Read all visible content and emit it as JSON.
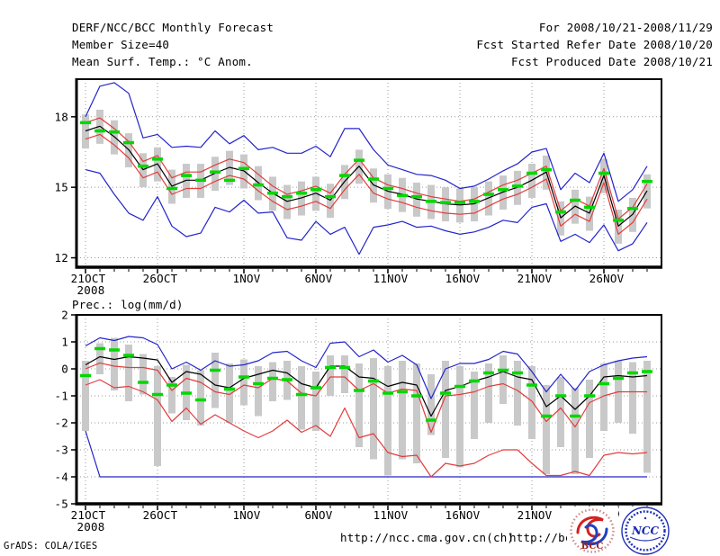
{
  "header": {
    "left_lines": [
      "DERF/NCC/BCC Monthly Forecast",
      "Member Size=40",
      "Mean Surf. Temp.: °C Anom."
    ],
    "right_lines": [
      "For 2008/10/21-2008/11/29",
      "Fcst Started Refer Date 2008/10/20",
      "Fcst Produced Date 2008/10/21"
    ]
  },
  "footer": {
    "grads_credit": "GrADS: COLA/IGES",
    "url_ncc": "http://ncc.cma.gov.cn(ch)",
    "url_bcc": "http://bcc.c",
    "logo_bcc_text": "BCC",
    "logo_ncc_text": "NCC"
  },
  "colors": {
    "ens_minmax_blue": "#2424cc",
    "spread_red": "#e23c3c",
    "mean_black": "#000000",
    "obs_green": "#00d800",
    "bar_gray": "#c9c9c9",
    "grid_gray": "#999999"
  },
  "chart_data": [
    {
      "type": "line",
      "title": "Mean Surf. Temp.: °C Anom.",
      "xlabel": "",
      "ylabel": "",
      "ylim": [
        11.6,
        19.6
      ],
      "yticks": [
        18,
        15,
        12
      ],
      "ygrid": [
        18,
        15,
        12
      ],
      "x_count": 40,
      "xticks": {
        "positions": [
          0,
          5,
          11,
          16,
          21,
          26,
          31,
          36
        ],
        "labels": [
          "21OCT",
          "26OCT",
          "1NOV",
          "6NOV",
          "11NOV",
          "16NOV",
          "21NOV",
          "26NOV"
        ],
        "sublabel": "2008"
      },
      "legend": "none",
      "grid": true,
      "series": [
        {
          "name": "ens-max",
          "color": "#2424cc",
          "values": [
            18.0,
            19.3,
            19.45,
            19.0,
            17.1,
            17.25,
            16.7,
            16.75,
            16.7,
            17.4,
            16.85,
            17.2,
            16.6,
            16.7,
            16.45,
            16.45,
            16.75,
            16.3,
            17.5,
            17.5,
            16.6,
            15.95,
            15.75,
            15.55,
            15.5,
            15.3,
            14.95,
            15.05,
            15.35,
            15.7,
            16.0,
            16.5,
            16.65,
            14.9,
            15.6,
            15.2,
            16.45,
            14.4,
            14.9,
            15.9
          ]
        },
        {
          "name": "ens-min",
          "color": "#2424cc",
          "values": [
            15.75,
            15.6,
            14.7,
            13.9,
            13.6,
            14.6,
            13.35,
            12.9,
            13.05,
            14.15,
            13.95,
            14.45,
            13.9,
            13.95,
            12.85,
            12.75,
            13.55,
            13.0,
            13.3,
            12.15,
            13.3,
            13.4,
            13.55,
            13.3,
            13.35,
            13.15,
            13.0,
            13.1,
            13.3,
            13.6,
            13.5,
            14.15,
            14.3,
            12.7,
            13.0,
            12.65,
            13.4,
            12.3,
            12.6,
            13.5
          ]
        },
        {
          "name": "spread-upper",
          "color": "#e23c3c",
          "values": [
            17.75,
            17.95,
            17.5,
            16.95,
            16.1,
            16.35,
            15.4,
            15.65,
            15.65,
            15.95,
            16.2,
            16.05,
            15.55,
            15.05,
            14.7,
            14.85,
            15.05,
            14.75,
            15.55,
            16.2,
            15.4,
            15.1,
            14.95,
            14.75,
            14.6,
            14.5,
            14.4,
            14.5,
            14.8,
            15.1,
            15.3,
            15.6,
            15.9,
            14.0,
            14.5,
            14.2,
            15.8,
            13.65,
            14.15,
            15.15
          ]
        },
        {
          "name": "spread-lower",
          "color": "#e23c3c",
          "values": [
            17.05,
            17.25,
            16.8,
            16.25,
            15.4,
            15.65,
            14.7,
            14.95,
            14.95,
            15.25,
            15.5,
            15.35,
            14.85,
            14.4,
            14.05,
            14.2,
            14.4,
            14.1,
            14.9,
            15.55,
            14.75,
            14.5,
            14.35,
            14.15,
            14.0,
            13.9,
            13.85,
            13.9,
            14.2,
            14.5,
            14.7,
            15.0,
            15.35,
            13.35,
            13.85,
            13.55,
            15.2,
            13.0,
            13.5,
            14.5
          ]
        },
        {
          "name": "ens-mean",
          "color": "#000000",
          "values": [
            17.4,
            17.6,
            17.15,
            16.6,
            15.75,
            16.0,
            15.05,
            15.3,
            15.3,
            15.6,
            15.85,
            15.7,
            15.2,
            14.75,
            14.4,
            14.55,
            14.75,
            14.45,
            15.25,
            15.9,
            15.1,
            14.83,
            14.7,
            14.5,
            14.4,
            14.3,
            14.25,
            14.3,
            14.55,
            14.8,
            15.0,
            15.3,
            15.65,
            13.7,
            14.2,
            13.9,
            15.5,
            13.35,
            13.85,
            14.85
          ]
        }
      ],
      "obs_markers": {
        "name": "obs-dash",
        "color": "#00d800",
        "values": [
          17.75,
          17.4,
          17.35,
          16.9,
          15.9,
          16.2,
          14.95,
          15.5,
          15.3,
          15.65,
          15.3,
          15.8,
          15.1,
          14.75,
          14.6,
          14.75,
          14.9,
          14.6,
          15.5,
          16.15,
          15.35,
          14.95,
          14.65,
          14.6,
          14.4,
          14.35,
          14.35,
          14.4,
          14.7,
          14.9,
          15.05,
          15.6,
          15.75,
          13.95,
          14.45,
          14.15,
          15.6,
          13.6,
          14.1,
          15.25
        ]
      },
      "spread_bars": {
        "color": "#c9c9c9",
        "low": [
          16.65,
          16.85,
          16.4,
          15.85,
          15.0,
          15.25,
          14.3,
          14.55,
          14.55,
          14.85,
          15.1,
          14.95,
          14.45,
          14.0,
          13.65,
          13.8,
          14.0,
          13.7,
          14.5,
          15.15,
          14.35,
          14.08,
          13.95,
          13.75,
          13.65,
          13.55,
          13.5,
          13.55,
          13.8,
          14.05,
          14.25,
          14.55,
          14.9,
          12.95,
          13.45,
          13.15,
          14.75,
          12.6,
          13.1,
          14.1
        ],
        "high": [
          18.1,
          18.3,
          17.85,
          17.3,
          16.45,
          16.7,
          15.75,
          16.0,
          16.0,
          16.3,
          16.55,
          16.4,
          15.9,
          15.45,
          15.1,
          15.25,
          15.45,
          15.15,
          15.95,
          16.6,
          15.8,
          15.55,
          15.4,
          15.2,
          15.1,
          15.0,
          14.95,
          15.0,
          15.25,
          15.5,
          15.7,
          16.0,
          16.35,
          14.4,
          14.9,
          14.6,
          16.2,
          14.05,
          14.55,
          15.55
        ]
      }
    },
    {
      "type": "line",
      "title": "Prec.: log(mm/d)",
      "xlabel": "",
      "ylabel": "",
      "ylim": [
        -5,
        2
      ],
      "yticks": [
        2,
        1,
        0,
        -1,
        -2,
        -3,
        -4,
        -5
      ],
      "ygrid": [
        1,
        0,
        -1,
        -2,
        -3,
        -4
      ],
      "x_count": 40,
      "xticks": {
        "positions": [
          0,
          5,
          11,
          16,
          21,
          26,
          31,
          36
        ],
        "labels": [
          "21OCT",
          "26OCT",
          "1NOV",
          "6NOV",
          "11NOV",
          "16NOV",
          "21NOV",
          "26NOV"
        ],
        "sublabel": "2008"
      },
      "legend": "none",
      "grid": true,
      "series": [
        {
          "name": "ens-max",
          "color": "#2424cc",
          "values": [
            0.85,
            1.15,
            1.05,
            1.2,
            1.15,
            0.9,
            0.0,
            0.25,
            -0.05,
            0.3,
            0.1,
            0.15,
            0.3,
            0.6,
            0.65,
            0.3,
            0.05,
            0.95,
            1.0,
            0.45,
            0.7,
            0.25,
            0.5,
            0.15,
            -1.1,
            0.0,
            0.2,
            0.2,
            0.35,
            0.65,
            0.55,
            -0.1,
            -0.85,
            -0.2,
            -0.8,
            -0.1,
            0.15,
            0.3,
            0.4,
            0.45
          ]
        },
        {
          "name": "ens-min",
          "color": "#2424cc",
          "values": [
            -2.3,
            -4.0,
            -4.0,
            -4.0,
            -4.0,
            -4.0,
            -4.0,
            -4.0,
            -4.0,
            -4.0,
            -4.0,
            -4.0,
            -4.0,
            -4.0,
            -4.0,
            -4.0,
            -4.0,
            -4.0,
            -4.0,
            -4.0,
            -4.0,
            -4.0,
            -4.0,
            -4.0,
            -4.0,
            -4.0,
            -4.0,
            -4.0,
            -4.0,
            -4.0,
            -4.0,
            -4.0,
            -4.0,
            -4.0,
            -4.0,
            -4.0,
            -4.0,
            -4.0,
            -4.0,
            -4.0
          ]
        },
        {
          "name": "spread-upper",
          "color": "#e23c3c",
          "values": [
            0.0,
            0.22,
            0.1,
            0.05,
            0.05,
            -0.05,
            -0.8,
            -0.35,
            -0.5,
            -0.85,
            -0.95,
            -0.6,
            -0.7,
            -0.35,
            -0.45,
            -0.9,
            -1.0,
            -0.3,
            -0.3,
            -0.8,
            -0.55,
            -0.9,
            -0.75,
            -0.8,
            -2.35,
            -1.0,
            -0.95,
            -0.85,
            -0.65,
            -0.55,
            -0.8,
            -1.2,
            -1.95,
            -1.45,
            -2.15,
            -1.25,
            -1.0,
            -0.85,
            -0.85,
            -0.85
          ]
        },
        {
          "name": "spread-lower",
          "color": "#e23c3c",
          "values": [
            -0.6,
            -0.4,
            -0.7,
            -0.65,
            -0.85,
            -1.15,
            -1.95,
            -1.45,
            -2.05,
            -1.7,
            -2.0,
            -2.3,
            -2.55,
            -2.3,
            -1.9,
            -2.35,
            -2.1,
            -2.5,
            -1.45,
            -2.55,
            -2.4,
            -3.1,
            -3.25,
            -3.2,
            -4.0,
            -3.5,
            -3.6,
            -3.5,
            -3.2,
            -3.0,
            -3.0,
            -3.5,
            -3.95,
            -3.95,
            -3.8,
            -3.95,
            -3.2,
            -3.1,
            -3.15,
            -3.1
          ]
        },
        {
          "name": "ens-mean",
          "color": "#000000",
          "values": [
            0.15,
            0.45,
            0.35,
            0.45,
            0.4,
            0.33,
            -0.5,
            -0.1,
            -0.2,
            -0.6,
            -0.7,
            -0.35,
            -0.2,
            -0.05,
            -0.15,
            -0.55,
            -0.7,
            0.1,
            0.1,
            -0.3,
            -0.35,
            -0.65,
            -0.5,
            -0.6,
            -1.75,
            -0.8,
            -0.65,
            -0.45,
            -0.3,
            -0.1,
            -0.3,
            -0.4,
            -1.4,
            -1.0,
            -1.5,
            -1.0,
            -0.3,
            -0.25,
            -0.3,
            -0.25
          ]
        }
      ],
      "obs_markers": {
        "name": "obs-dash",
        "color": "#00d800",
        "values": [
          -0.25,
          0.75,
          0.7,
          0.5,
          -0.5,
          -0.95,
          -0.6,
          -0.9,
          -1.15,
          -0.05,
          -0.75,
          -0.3,
          -0.55,
          -0.35,
          -0.4,
          -0.95,
          -0.7,
          0.05,
          0.05,
          -0.8,
          -0.45,
          -0.9,
          -0.85,
          -1.0,
          -1.9,
          -0.9,
          -0.65,
          -0.45,
          -0.15,
          -0.05,
          -0.15,
          -0.6,
          -1.75,
          -1.0,
          -1.75,
          -1.0,
          -0.55,
          -0.35,
          -0.15,
          -0.1
        ]
      },
      "spread_bars": {
        "color": "#c9c9c9",
        "low": [
          -2.3,
          -0.2,
          -0.8,
          -1.2,
          -0.95,
          -3.6,
          -1.65,
          -1.9,
          -2.1,
          -1.45,
          -2.0,
          -1.35,
          -1.75,
          -1.2,
          -1.15,
          -2.25,
          -2.3,
          -1.0,
          -0.9,
          -2.9,
          -3.35,
          -3.95,
          -3.35,
          -3.5,
          -2.45,
          -3.3,
          -3.65,
          -2.6,
          -2.0,
          -1.3,
          -2.1,
          -2.6,
          -3.9,
          -2.9,
          -3.9,
          -3.3,
          -2.3,
          -2.0,
          -2.4,
          -3.85
        ],
        "high": [
          0.3,
          0.95,
          1.15,
          0.9,
          0.55,
          0.1,
          -0.3,
          0.15,
          -0.05,
          0.6,
          0.2,
          0.35,
          0.1,
          0.25,
          0.3,
          0.1,
          -0.1,
          0.5,
          0.5,
          0.2,
          0.4,
          0.1,
          0.3,
          0.2,
          -0.2,
          0.3,
          0.1,
          -0.1,
          0.2,
          0.5,
          0.3,
          0.1,
          -0.6,
          -0.3,
          -0.7,
          -0.4,
          0.2,
          0.3,
          0.25,
          0.3
        ]
      }
    }
  ]
}
